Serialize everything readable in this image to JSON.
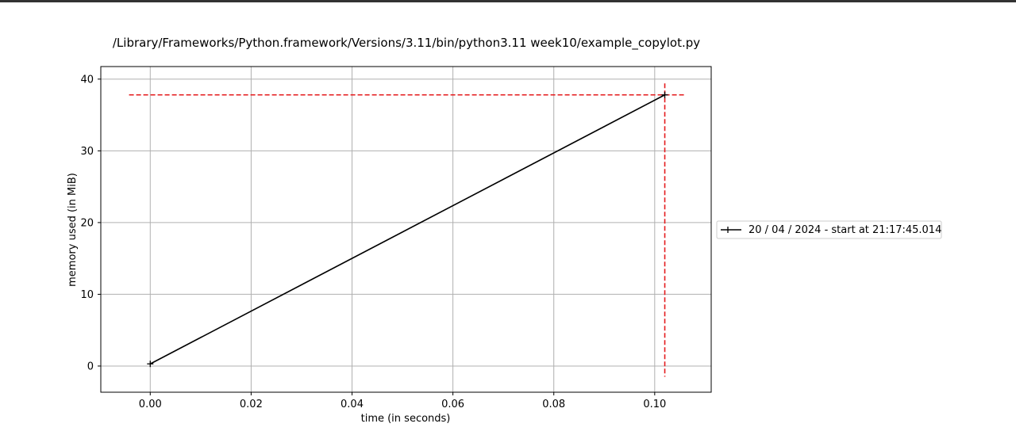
{
  "window": {
    "bar_color": "#333333"
  },
  "chart_data": {
    "type": "line",
    "title": "/Library/Frameworks/Python.framework/Versions/3.11/bin/python3.11 week10/example_copylot.py",
    "xlabel": "time (in seconds)",
    "ylabel": "memory used (in MiB)",
    "xlim": [
      -0.0098,
      0.1112
    ],
    "ylim": [
      -3.65,
      41.75
    ],
    "xticks": [
      0.0,
      0.02,
      0.04,
      0.06,
      0.08,
      0.1
    ],
    "xtick_labels": [
      "0.00",
      "0.02",
      "0.04",
      "0.06",
      "0.08",
      "0.10"
    ],
    "yticks": [
      0,
      10,
      20,
      30,
      40
    ],
    "ytick_labels": [
      "0",
      "10",
      "20",
      "30",
      "40"
    ],
    "grid": true,
    "legend_position": "outside-right",
    "series": [
      {
        "name": "20 / 04 / 2024 - start at 21:17:45.014",
        "x": [
          0.0,
          0.102
        ],
        "y": [
          0.3,
          37.8
        ],
        "color": "#000000",
        "marker": "+"
      }
    ],
    "annotations": {
      "color": "#e41a1c",
      "hline": {
        "y": 37.8,
        "x_from": -0.0042,
        "x_to": 0.1061
      },
      "vline": {
        "x": 0.102,
        "y_from": -1.5,
        "y_to": 39.4
      }
    }
  }
}
